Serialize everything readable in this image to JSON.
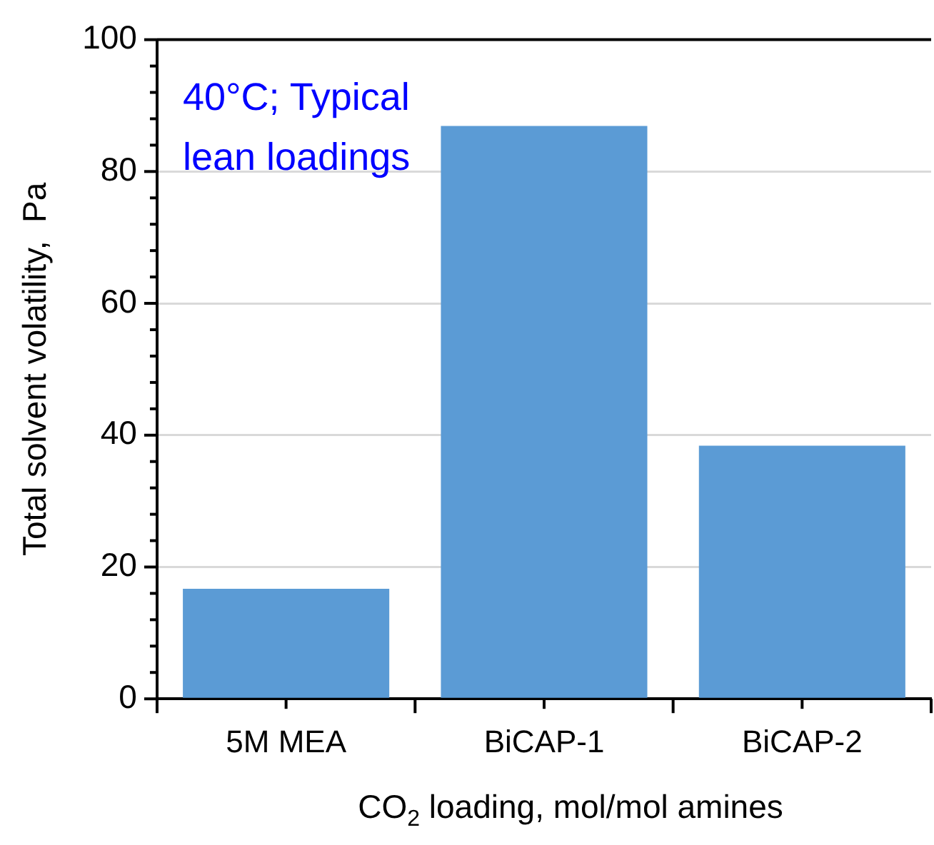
{
  "chart_data": {
    "type": "bar",
    "ylabel": "Total solvent volatility,  Pa",
    "xlabel": "CO$_{2}$ loading, mol/mol amines",
    "categories": [
      "5M MEA",
      "BiCAP-1",
      "BiCAP-2"
    ],
    "values": [
      16.7,
      86.9,
      38.4
    ],
    "color": "#5b9bd5",
    "ylim": [
      0,
      100
    ],
    "yticks": [
      0,
      {
        "value": 4,
        "label": null
      },
      {
        "value": 8,
        "label": null
      },
      {
        "value": 12,
        "label": null
      },
      {
        "value": 16,
        "label": null
      },
      20,
      {
        "value": 24,
        "label": null
      },
      {
        "value": 28,
        "label": null
      },
      {
        "value": 32,
        "label": null
      },
      {
        "value": 36,
        "label": null
      },
      40,
      {
        "value": 44,
        "label": null
      },
      {
        "value": 48,
        "label": null
      },
      {
        "value": 52,
        "label": null
      },
      {
        "value": 56,
        "label": null
      },
      60,
      {
        "value": 64,
        "label": null
      },
      {
        "value": 68,
        "label": null
      },
      {
        "value": 72,
        "label": null
      },
      {
        "value": 76,
        "label": null
      },
      80,
      {
        "value": 84,
        "label": null
      },
      {
        "value": 88,
        "label": null
      },
      {
        "value": 92,
        "label": null
      },
      {
        "value": 96,
        "label": null
      },
      100
    ],
    "grid": "y",
    "annotations": [
      "40°C; Typical lean loadings"
    ]
  }
}
